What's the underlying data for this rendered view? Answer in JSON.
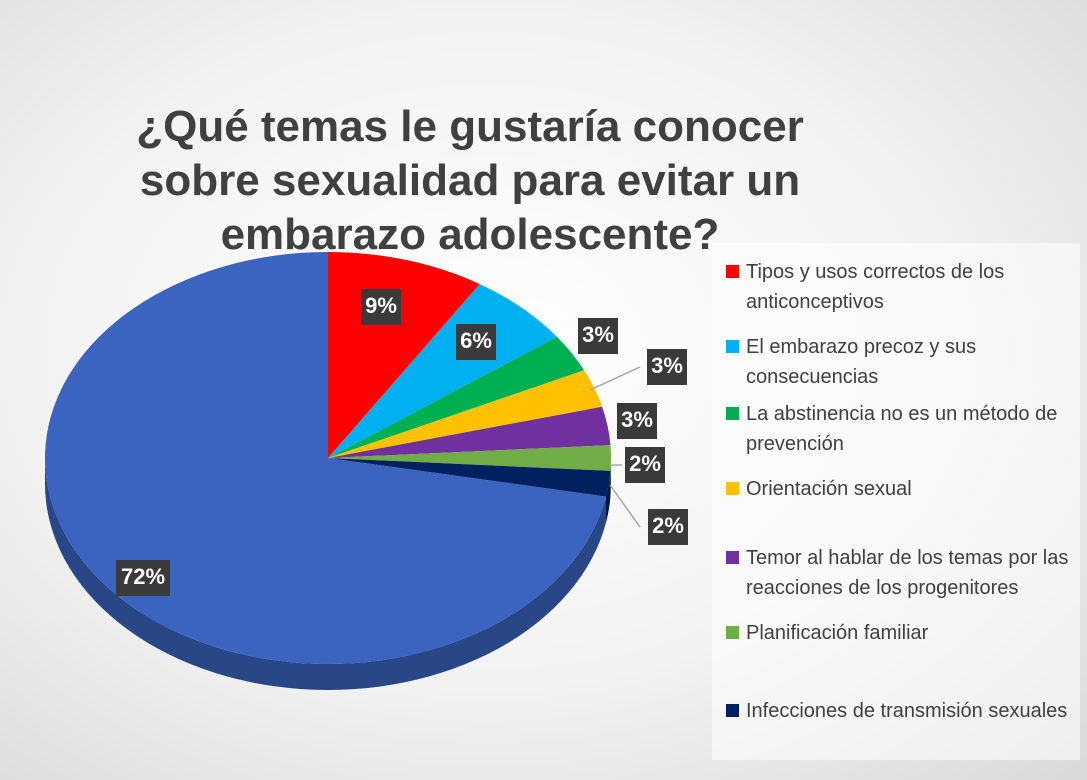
{
  "chart_data": {
    "type": "pie",
    "title": "¿Qué temas le gustaría conocer sobre sexualidad para evitar un embarazo adolescente?",
    "categories": [
      "Tipos y usos correctos de los anticonceptivos",
      "El embarazo precoz y sus consecuencias",
      "La abstinencia no es un método de prevención",
      "Orientación sexual",
      "Temor al hablar de los temas por las reacciones de los progenitores",
      "Planificación familiar",
      "Infecciones de transmisión sexuales",
      null
    ],
    "values": [
      9,
      6,
      3,
      3,
      3,
      2,
      2,
      72
    ],
    "value_labels": [
      "9%",
      "6%",
      "3%",
      "3%",
      "3%",
      "2%",
      "2%",
      "72%"
    ],
    "colors": [
      "#ff0000",
      "#00b0f0",
      "#00b050",
      "#ffc000",
      "#7030a0",
      "#70ad47",
      "#002060",
      "#3a64c0"
    ],
    "legend": "right"
  }
}
